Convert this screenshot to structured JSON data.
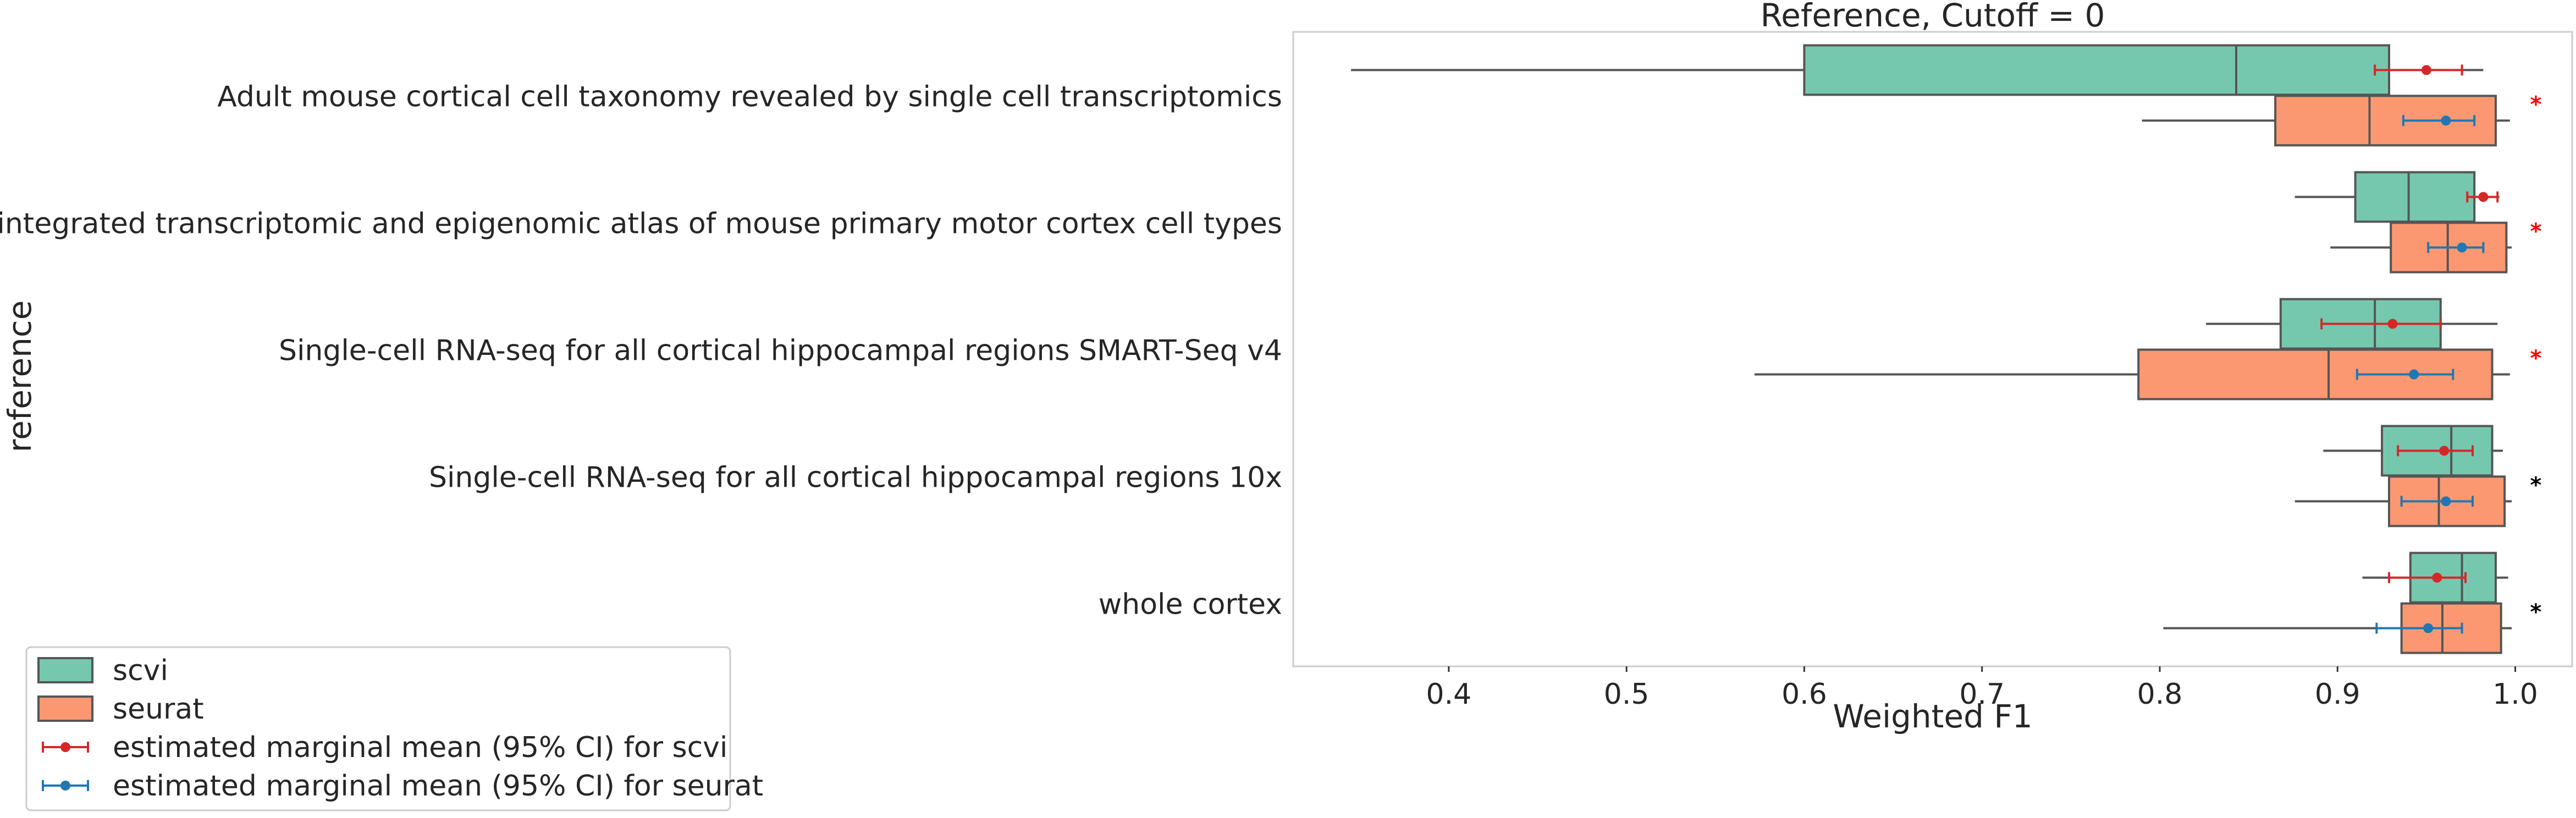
{
  "chart_data": {
    "type": "box",
    "title": "Reference, Cutoff = 0",
    "xlabel": "Weighted F1",
    "ylabel": "reference",
    "xlim": [
      0.3125,
      1.032
    ],
    "xticks": [
      0.4,
      0.5,
      0.6,
      0.7,
      0.8,
      0.9,
      1.0
    ],
    "xtick_labels": [
      "0.4",
      "0.5",
      "0.6",
      "0.7",
      "0.8",
      "0.9",
      "1.0"
    ],
    "grid": false,
    "legend_position": "lower-left, outside plot",
    "categories": [
      "Adult mouse cortical cell taxonomy revealed by single cell transcriptomics",
      "An integrated transcriptomic and epigenomic atlas of mouse primary motor cortex cell types",
      "Single-cell RNA-seq for all cortical  hippocampal regions SMART-Seq v4",
      "Single-cell RNA-seq for all cortical  hippocampal regions 10x",
      "whole cortex"
    ],
    "series": [
      {
        "name": "scvi",
        "color": "#66c2a5",
        "boxes": [
          {
            "whisker_low": 0.345,
            "q1": 0.6,
            "median": 0.843,
            "q3": 0.929,
            "whisker_high": 0.982
          },
          {
            "whisker_low": 0.876,
            "q1": 0.91,
            "median": 0.94,
            "q3": 0.977,
            "whisker_high": 0.991
          },
          {
            "whisker_low": 0.826,
            "q1": 0.868,
            "median": 0.921,
            "q3": 0.958,
            "whisker_high": 0.99
          },
          {
            "whisker_low": 0.892,
            "q1": 0.925,
            "median": 0.964,
            "q3": 0.987,
            "whisker_high": 0.993
          },
          {
            "whisker_low": 0.914,
            "q1": 0.941,
            "median": 0.97,
            "q3": 0.989,
            "whisker_high": 0.996
          }
        ],
        "marginal_mean": [
          {
            "mean": 0.95,
            "ci_low": 0.921,
            "ci_high": 0.97
          },
          {
            "mean": 0.982,
            "ci_low": 0.973,
            "ci_high": 0.99
          },
          {
            "mean": 0.931,
            "ci_low": 0.891,
            "ci_high": 0.958
          },
          {
            "mean": 0.96,
            "ci_low": 0.934,
            "ci_high": 0.976
          },
          {
            "mean": 0.956,
            "ci_low": 0.929,
            "ci_high": 0.972
          }
        ]
      },
      {
        "name": "seurat",
        "color": "#fc8d62",
        "boxes": [
          {
            "whisker_low": 0.79,
            "q1": 0.865,
            "median": 0.918,
            "q3": 0.989,
            "whisker_high": 0.997
          },
          {
            "whisker_low": 0.896,
            "q1": 0.93,
            "median": 0.962,
            "q3": 0.995,
            "whisker_high": 0.998
          },
          {
            "whisker_low": 0.572,
            "q1": 0.788,
            "median": 0.895,
            "q3": 0.987,
            "whisker_high": 0.997
          },
          {
            "whisker_low": 0.876,
            "q1": 0.929,
            "median": 0.957,
            "q3": 0.994,
            "whisker_high": 0.998
          },
          {
            "whisker_low": 0.802,
            "q1": 0.936,
            "median": 0.959,
            "q3": 0.992,
            "whisker_high": 0.998
          }
        ],
        "marginal_mean": [
          {
            "mean": 0.961,
            "ci_low": 0.937,
            "ci_high": 0.977
          },
          {
            "mean": 0.97,
            "ci_low": 0.951,
            "ci_high": 0.982
          },
          {
            "mean": 0.943,
            "ci_low": 0.911,
            "ci_high": 0.965
          },
          {
            "mean": 0.961,
            "ci_low": 0.936,
            "ci_high": 0.976
          },
          {
            "mean": 0.951,
            "ci_low": 0.922,
            "ci_high": 0.97
          }
        ]
      }
    ],
    "significance_markers": [
      {
        "text": "*",
        "color": "#ff0000"
      },
      {
        "text": "*",
        "color": "#ff0000"
      },
      {
        "text": "*",
        "color": "#ff0000"
      },
      {
        "text": "*",
        "color": "#000000"
      },
      {
        "text": "*",
        "color": "#000000"
      }
    ],
    "legend": [
      {
        "label": "scvi",
        "kind": "patch",
        "color": "#66c2a5"
      },
      {
        "label": "seurat",
        "kind": "patch",
        "color": "#fc8d62"
      },
      {
        "label": "estimated marginal mean (95% CI) for scvi",
        "kind": "errorbar",
        "color": "#d62728"
      },
      {
        "label": "estimated marginal mean (95% CI) for seurat",
        "kind": "errorbar",
        "color": "#1f77b4"
      }
    ],
    "colors": {
      "box_edge": "#555555",
      "axis": "#cccccc",
      "scvi_ci": "#d62728",
      "seurat_ci": "#1f77b4"
    }
  }
}
